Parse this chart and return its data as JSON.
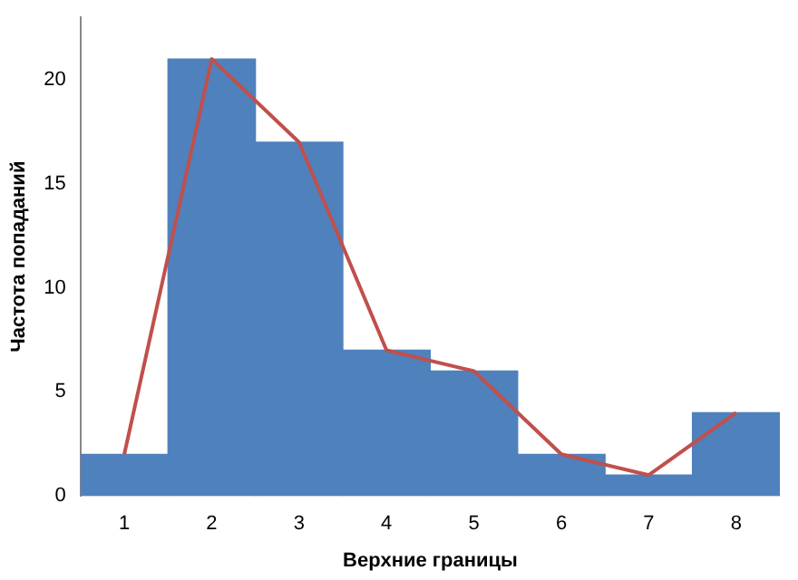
{
  "chart_data": {
    "type": "bar",
    "xlabel": "Верхние границы",
    "ylabel": "Частота попаданий",
    "categories": [
      "1",
      "2",
      "3",
      "4",
      "5",
      "6",
      "7",
      "8"
    ],
    "series": [
      {
        "color": "#4f81bd",
        "values": [
          2,
          21,
          17,
          7,
          6,
          2,
          1,
          4
        ]
      },
      {
        "type": "line",
        "color": "#c0504d",
        "values": [
          2,
          21,
          17,
          7,
          6,
          2,
          1,
          4
        ]
      }
    ],
    "ylim": [
      0,
      23
    ],
    "yticks": [
      0,
      5,
      10,
      15,
      20
    ],
    "grid": false,
    "legend": false,
    "marker": "none"
  }
}
